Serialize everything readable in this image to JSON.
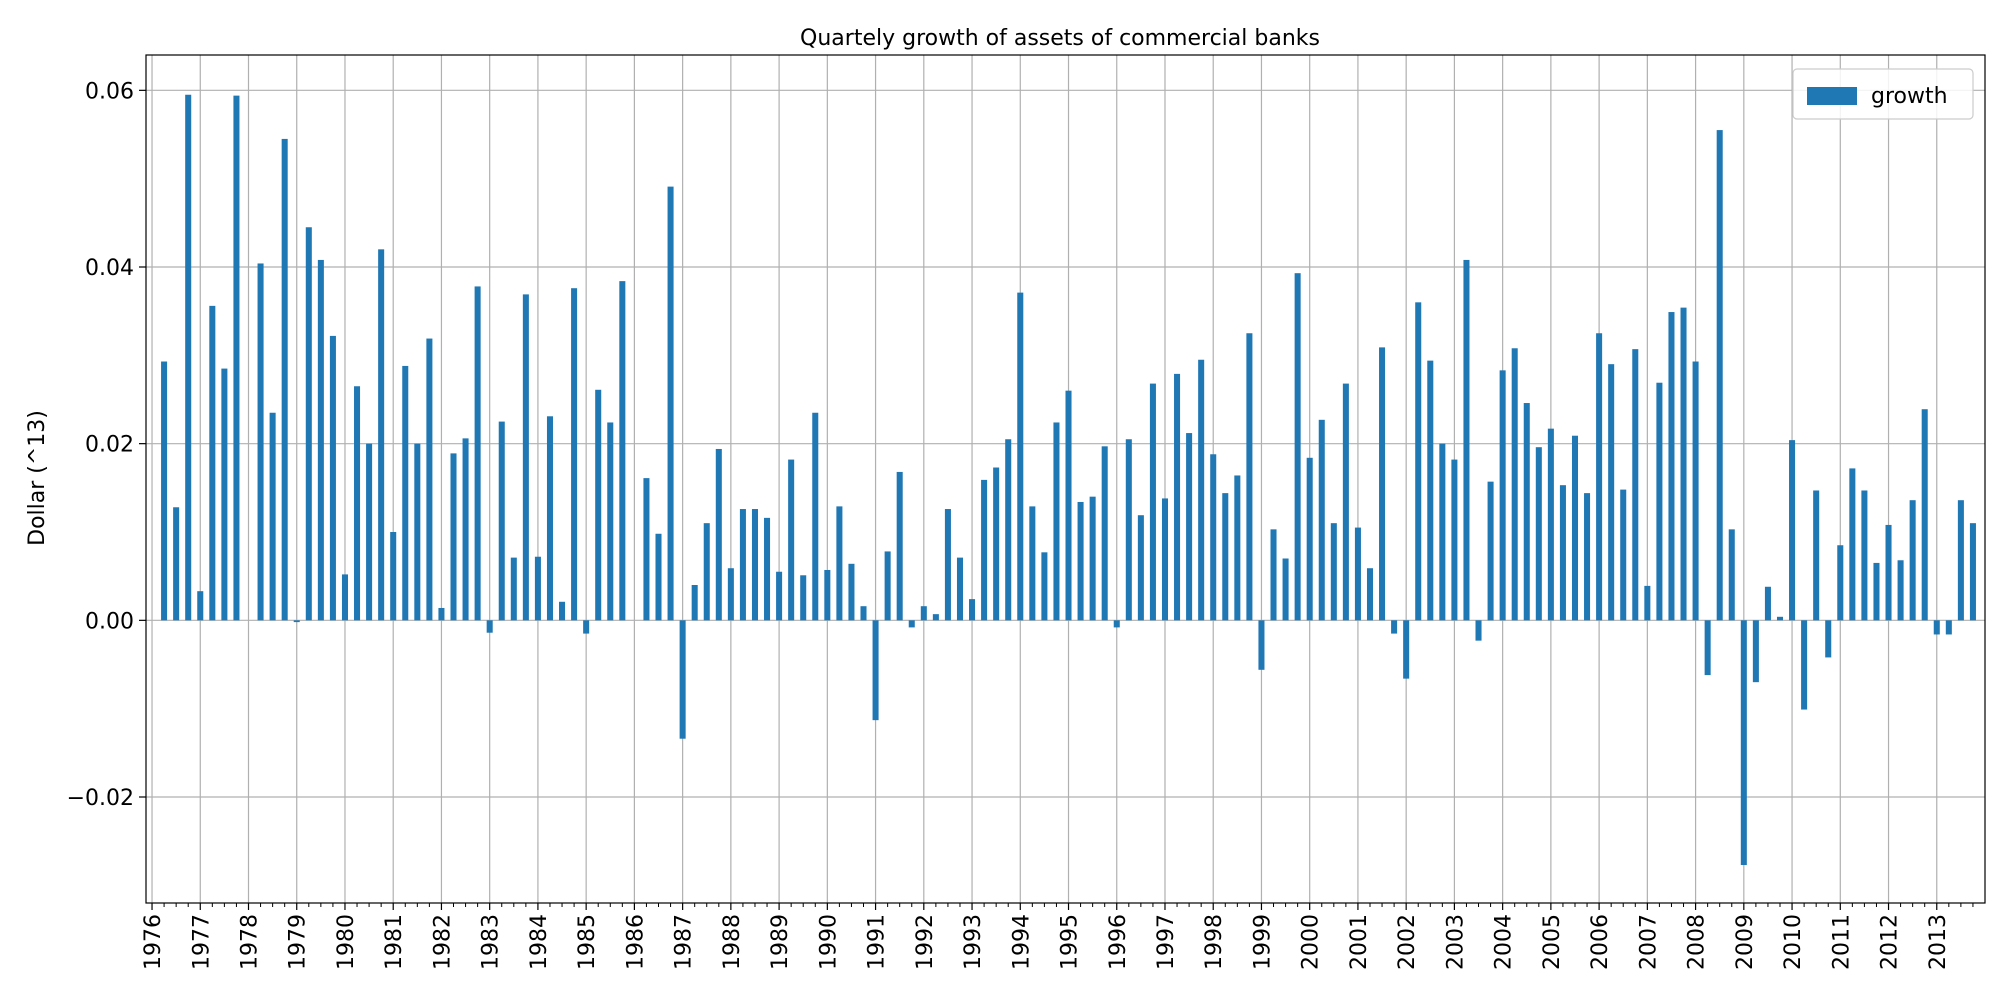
{
  "chart_data": {
    "type": "bar",
    "title": "Quartely growth of assets of commercial banks",
    "xlabel": "",
    "ylabel": "Dollar (^13)",
    "ylim": [
      -0.032,
      0.064
    ],
    "yticks": [
      -0.02,
      0.0,
      0.02,
      0.04,
      0.06
    ],
    "ytick_labels": [
      "−0.02",
      "0.00",
      "0.02",
      "0.04",
      "0.06"
    ],
    "year_labels": [
      "1976",
      "1977",
      "1978",
      "1979",
      "1980",
      "1981",
      "1982",
      "1983",
      "1984",
      "1985",
      "1986",
      "1987",
      "1988",
      "1989",
      "1990",
      "1991",
      "1992",
      "1993",
      "1994",
      "1995",
      "1996",
      "1997",
      "1998",
      "1999",
      "2000",
      "2001",
      "2002",
      "2003",
      "2004",
      "2005",
      "2006",
      "2007",
      "2008",
      "2009",
      "2010",
      "2011",
      "2012",
      "2013"
    ],
    "legend_position": "top-right",
    "grid": true,
    "series": [
      {
        "name": "growth",
        "color": "#1f77b4",
        "values": [
          0.0,
          0.0293,
          0.0128,
          0.0595,
          0.0033,
          0.0356,
          0.0285,
          0.0594,
          0.0,
          0.0404,
          0.0235,
          0.0545,
          -0.0002,
          0.0445,
          0.0408,
          0.0322,
          0.0052,
          0.0265,
          0.02,
          0.042,
          0.01,
          0.0288,
          0.02,
          0.0319,
          0.0014,
          0.0189,
          0.0206,
          0.0378,
          -0.0014,
          0.0225,
          0.0071,
          0.0369,
          0.0072,
          0.0231,
          0.0021,
          0.0376,
          -0.0015,
          0.0261,
          0.0224,
          0.0384,
          0.0,
          0.0161,
          0.0098,
          0.0491,
          -0.0134,
          0.004,
          0.011,
          0.0194,
          0.0059,
          0.0126,
          0.0126,
          0.0116,
          0.0055,
          0.0182,
          0.0051,
          0.0235,
          0.0057,
          0.0129,
          0.0064,
          0.0016,
          -0.0113,
          0.0078,
          0.0168,
          -0.0008,
          0.0016,
          0.0007,
          0.0126,
          0.0071,
          0.0024,
          0.0159,
          0.0173,
          0.0205,
          0.0371,
          0.0129,
          0.0077,
          0.0224,
          0.026,
          0.0134,
          0.014,
          0.0197,
          -0.0008,
          0.0205,
          0.0119,
          0.0268,
          0.0138,
          0.0279,
          0.0212,
          0.0295,
          0.0188,
          0.0144,
          0.0164,
          0.0325,
          -0.0056,
          0.0103,
          0.007,
          0.0393,
          0.0184,
          0.0227,
          0.011,
          0.0268,
          0.0105,
          0.0059,
          0.0309,
          -0.0015,
          -0.0066,
          0.036,
          0.0294,
          0.02,
          0.0182,
          0.0408,
          -0.0023,
          0.0157,
          0.0283,
          0.0308,
          0.0246,
          0.0196,
          0.0217,
          0.0153,
          0.0209,
          0.0144,
          0.0325,
          0.029,
          0.0148,
          0.0307,
          0.0039,
          0.0269,
          0.0349,
          0.0354,
          0.0293,
          -0.0062,
          0.0555,
          0.0103,
          -0.0277,
          -0.007,
          0.0038,
          0.0004,
          0.0204,
          -0.0101,
          0.0147,
          -0.0042,
          0.0085,
          0.0172,
          0.0147,
          0.0065,
          0.0108,
          0.0068,
          0.0136,
          0.0239,
          -0.0016,
          -0.0016,
          0.0136,
          0.011
        ]
      }
    ]
  }
}
